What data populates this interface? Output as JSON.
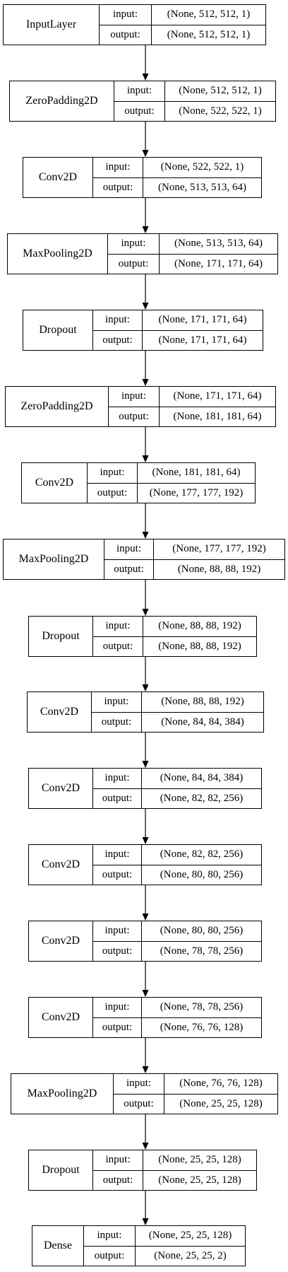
{
  "diagram": {
    "input_label": "input:",
    "output_label": "output:",
    "layers": [
      {
        "name": "InputLayer",
        "input": "(None, 512, 512, 1)",
        "output": "(None, 512, 512, 1)"
      },
      {
        "name": "ZeroPadding2D",
        "input": "(None, 512, 512, 1)",
        "output": "(None, 522, 522, 1)"
      },
      {
        "name": "Conv2D",
        "input": "(None, 522, 522, 1)",
        "output": "(None, 513, 513, 64)"
      },
      {
        "name": "MaxPooling2D",
        "input": "(None, 513, 513, 64)",
        "output": "(None, 171, 171, 64)"
      },
      {
        "name": "Dropout",
        "input": "(None, 171, 171, 64)",
        "output": "(None, 171, 171, 64)"
      },
      {
        "name": "ZeroPadding2D",
        "input": "(None, 171, 171, 64)",
        "output": "(None, 181, 181, 64)"
      },
      {
        "name": "Conv2D",
        "input": "(None, 181, 181, 64)",
        "output": "(None, 177, 177, 192)"
      },
      {
        "name": "MaxPooling2D",
        "input": "(None, 177, 177, 192)",
        "output": "(None, 88, 88, 192)"
      },
      {
        "name": "Dropout",
        "input": "(None, 88, 88, 192)",
        "output": "(None, 88, 88, 192)"
      },
      {
        "name": "Conv2D",
        "input": "(None, 88, 88, 192)",
        "output": "(None, 84, 84, 384)"
      },
      {
        "name": "Conv2D",
        "input": "(None, 84, 84, 384)",
        "output": "(None, 82, 82, 256)"
      },
      {
        "name": "Conv2D",
        "input": "(None, 82, 82, 256)",
        "output": "(None, 80, 80, 256)"
      },
      {
        "name": "Conv2D",
        "input": "(None, 80, 80, 256)",
        "output": "(None, 78, 78, 256)"
      },
      {
        "name": "Conv2D",
        "input": "(None, 78, 78, 256)",
        "output": "(None, 76, 76, 128)"
      },
      {
        "name": "MaxPooling2D",
        "input": "(None, 76, 76, 128)",
        "output": "(None, 25, 25, 128)"
      },
      {
        "name": "Dropout",
        "input": "(None, 25, 25, 128)",
        "output": "(None, 25, 25, 128)"
      },
      {
        "name": "Dense",
        "input": "(None, 25, 25, 128)",
        "output": "(None, 25, 25, 2)"
      }
    ]
  }
}
